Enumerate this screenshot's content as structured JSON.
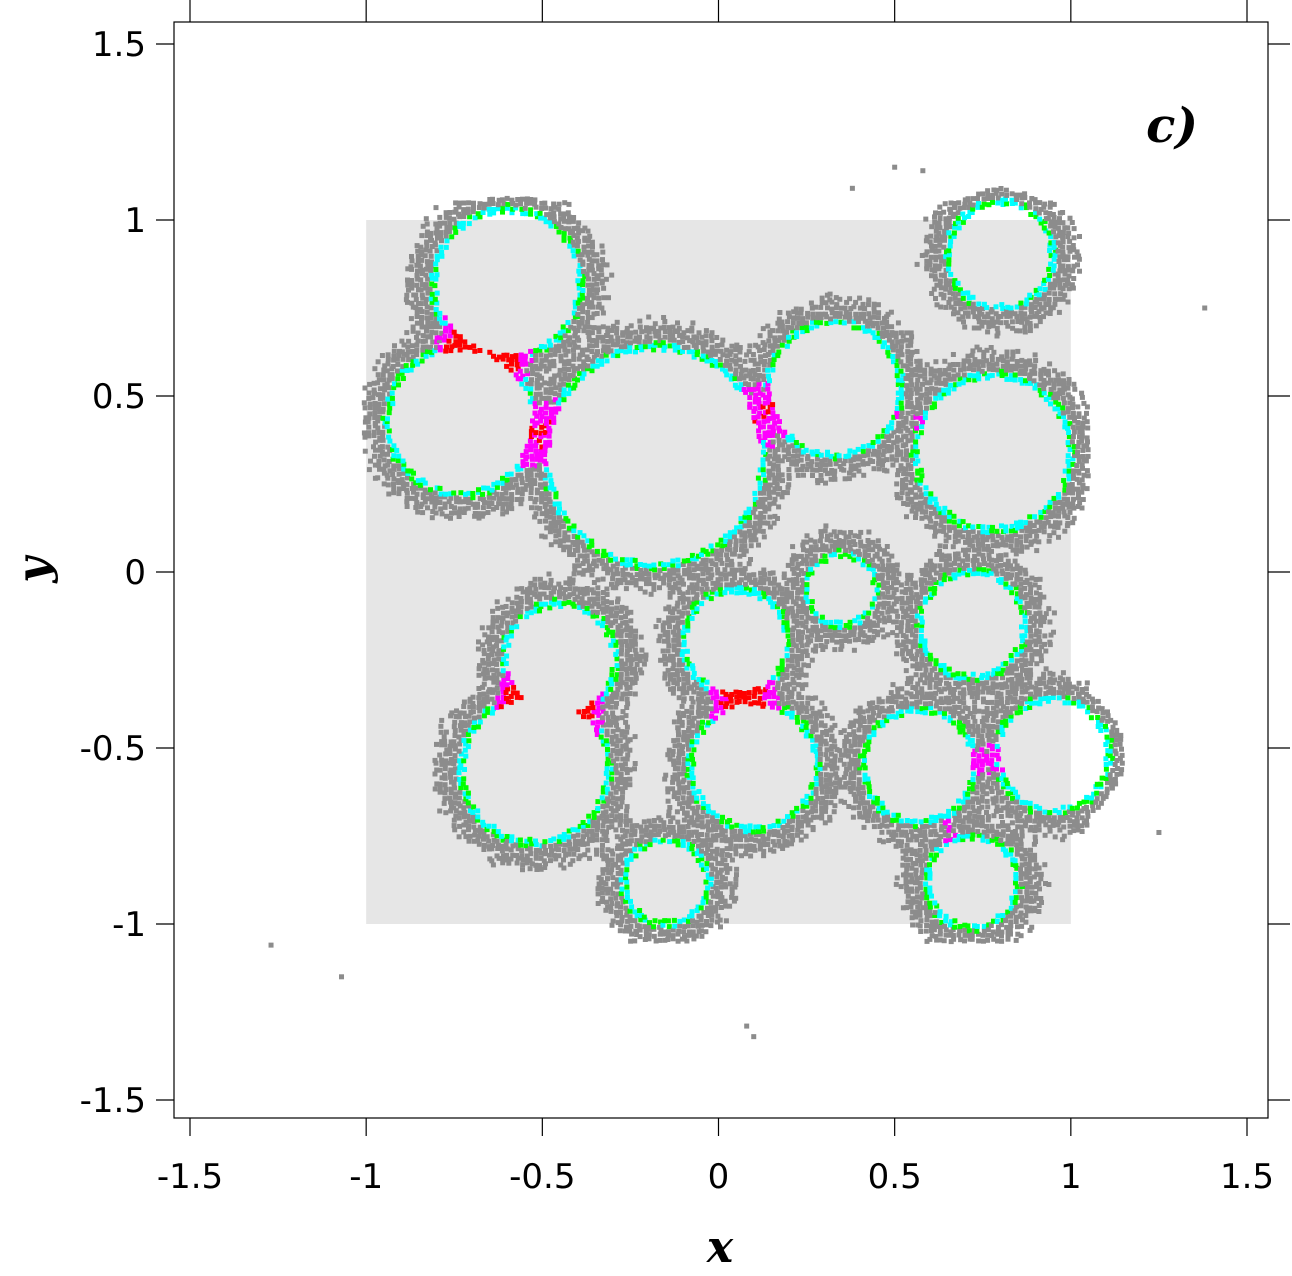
{
  "chart_data": {
    "type": "scatter",
    "panel_label": "c)",
    "xlabel": "x",
    "ylabel": "y",
    "xlim": [
      -1.55,
      1.55
    ],
    "ylim": [
      -1.55,
      1.55
    ],
    "xticks": [
      -1.5,
      -1,
      -0.5,
      0,
      0.5,
      1,
      1.5
    ],
    "yticks": [
      -1.5,
      -1,
      -0.5,
      0,
      0.5,
      1,
      1.5
    ],
    "xtick_labels": [
      "-1.5",
      "-1",
      "-0.5",
      "0",
      "0.5",
      "1",
      "1.5"
    ],
    "ytick_labels": [
      "-1.5",
      "-1",
      "-0.5",
      "0",
      "0.5",
      "1",
      "1.5"
    ],
    "grid": false,
    "background_region": {
      "x": [
        -1,
        1
      ],
      "y": [
        -1,
        1
      ],
      "color": "#e6e6e6"
    },
    "cells": [
      {
        "center": [
          -0.6,
          0.82
        ],
        "r": 0.2
      },
      {
        "center": [
          -0.73,
          0.43
        ],
        "r": 0.2
      },
      {
        "center": [
          -0.18,
          0.33
        ],
        "r": 0.3
      },
      {
        "center": [
          0.33,
          0.52
        ],
        "r": 0.18
      },
      {
        "center": [
          0.78,
          0.34
        ],
        "r": 0.21
      },
      {
        "center": [
          0.8,
          0.9
        ],
        "r": 0.14
      },
      {
        "center": [
          0.35,
          -0.05
        ],
        "r": 0.09
      },
      {
        "center": [
          0.05,
          -0.2
        ],
        "r": 0.14
      },
      {
        "center": [
          0.72,
          -0.15
        ],
        "r": 0.14
      },
      {
        "center": [
          -0.45,
          -0.25
        ],
        "r": 0.15
      },
      {
        "center": [
          -0.52,
          -0.56
        ],
        "r": 0.2
      },
      {
        "center": [
          0.1,
          -0.55
        ],
        "r": 0.17
      },
      {
        "center": [
          0.57,
          -0.55
        ],
        "r": 0.15
      },
      {
        "center": [
          0.95,
          -0.52
        ],
        "r": 0.15
      },
      {
        "center": [
          0.72,
          -0.88
        ],
        "r": 0.12
      },
      {
        "center": [
          -0.15,
          -0.88
        ],
        "r": 0.11
      }
    ],
    "series_colors": {
      "high": "#ff0000",
      "medium": "#ff00ff",
      "low": "#00ffff",
      "trace": "#00ff00",
      "background": "#8c8c8c"
    },
    "outliers": [
      [
        -1.27,
        -1.06
      ],
      [
        -1.07,
        -1.15
      ],
      [
        0.08,
        -1.29
      ],
      [
        0.1,
        -1.32
      ],
      [
        1.38,
        0.75
      ],
      [
        1.25,
        -0.74
      ],
      [
        0.38,
        1.09
      ],
      [
        0.5,
        1.15
      ],
      [
        0.58,
        1.14
      ]
    ]
  }
}
